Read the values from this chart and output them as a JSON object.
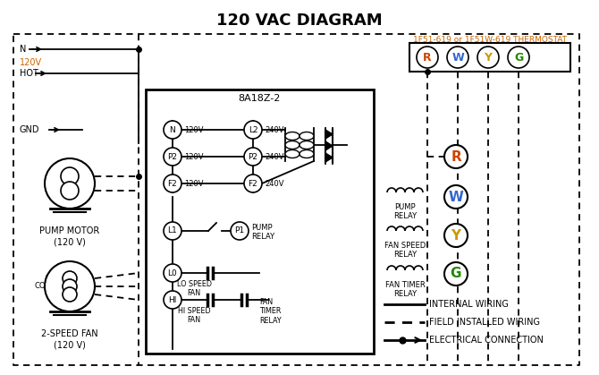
{
  "title": "120 VAC DIAGRAM",
  "bg_color": "#ffffff",
  "thermostat_label": "1F51-619 or 1F51W-619 THERMOSTAT",
  "thermostat_color": "#cc6600",
  "controller_label": "8A18Z-2",
  "pump_motor_label": "PUMP MOTOR\n(120 V)",
  "fan_label": "2-SPEED FAN\n(120 V)",
  "terminal_labels": [
    "R",
    "W",
    "Y",
    "G"
  ],
  "terminal_colors": [
    "#cc4400",
    "#3366cc",
    "#cc9900",
    "#228800"
  ],
  "orange": "#cc6600",
  "black": "#000000"
}
